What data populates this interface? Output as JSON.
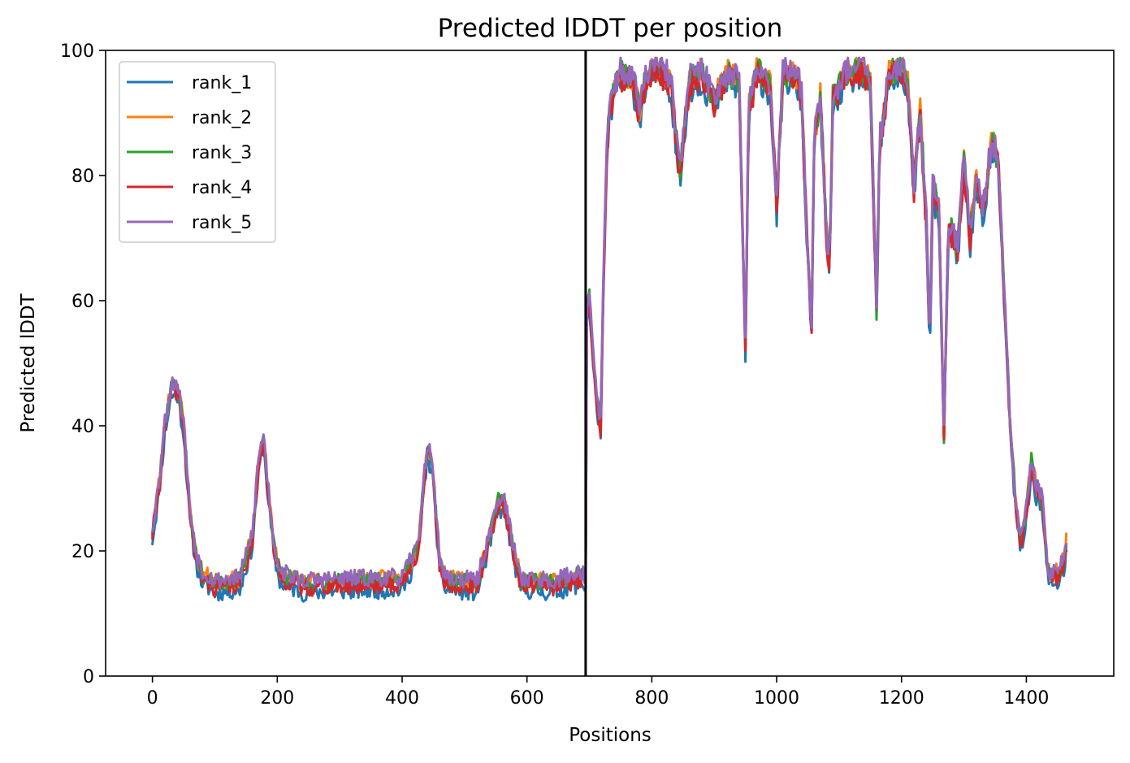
{
  "chart_data": {
    "type": "line",
    "title": "Predicted lDDT per position",
    "xlabel": "Positions",
    "ylabel": "Predicted lDDT",
    "xlim": [
      -75,
      1540
    ],
    "ylim": [
      0,
      100
    ],
    "xticks": [
      0,
      200,
      400,
      600,
      800,
      1000,
      1200,
      1400
    ],
    "yticks": [
      0,
      20,
      40,
      60,
      80,
      100
    ],
    "grid": false,
    "legend_position": "top-left",
    "divider_x": 694,
    "series": [
      {
        "name": "rank_1",
        "color": "#1f77b4",
        "offset": -1.2,
        "seed": 11
      },
      {
        "name": "rank_2",
        "color": "#ff7f0e",
        "offset": 0.6,
        "seed": 23
      },
      {
        "name": "rank_3",
        "color": "#2ca02c",
        "offset": 0.3,
        "seed": 37
      },
      {
        "name": "rank_4",
        "color": "#d62728",
        "offset": -0.4,
        "seed": 41
      },
      {
        "name": "rank_5",
        "color": "#9467bd",
        "offset": 0.8,
        "seed": 53
      }
    ],
    "profile": [
      [
        0,
        23
      ],
      [
        10,
        30
      ],
      [
        20,
        40
      ],
      [
        30,
        46
      ],
      [
        40,
        46
      ],
      [
        50,
        40
      ],
      [
        60,
        26
      ],
      [
        70,
        19
      ],
      [
        80,
        16
      ],
      [
        100,
        14.5
      ],
      [
        140,
        15
      ],
      [
        160,
        22
      ],
      [
        170,
        34
      ],
      [
        178,
        38
      ],
      [
        185,
        30
      ],
      [
        195,
        20
      ],
      [
        205,
        16
      ],
      [
        240,
        14.5
      ],
      [
        300,
        14.8
      ],
      [
        400,
        15
      ],
      [
        425,
        20
      ],
      [
        440,
        36
      ],
      [
        448,
        34
      ],
      [
        460,
        18
      ],
      [
        470,
        15
      ],
      [
        520,
        14.5
      ],
      [
        540,
        22
      ],
      [
        555,
        28
      ],
      [
        565,
        27
      ],
      [
        578,
        20
      ],
      [
        590,
        15
      ],
      [
        640,
        14.5
      ],
      [
        690,
        16
      ],
      [
        694,
        15
      ],
      [
        695,
        58
      ],
      [
        700,
        60
      ],
      [
        705,
        52
      ],
      [
        712,
        44
      ],
      [
        718,
        40
      ],
      [
        722,
        60
      ],
      [
        728,
        84
      ],
      [
        733,
        91
      ],
      [
        740,
        94
      ],
      [
        750,
        96
      ],
      [
        770,
        95
      ],
      [
        780,
        90
      ],
      [
        790,
        95
      ],
      [
        800,
        97
      ],
      [
        820,
        96
      ],
      [
        830,
        95
      ],
      [
        845,
        80
      ],
      [
        860,
        95
      ],
      [
        880,
        96
      ],
      [
        900,
        92
      ],
      [
        920,
        96
      ],
      [
        940,
        95
      ],
      [
        950,
        52
      ],
      [
        955,
        90
      ],
      [
        970,
        97
      ],
      [
        990,
        94
      ],
      [
        1000,
        75
      ],
      [
        1010,
        96
      ],
      [
        1030,
        96
      ],
      [
        1040,
        93
      ],
      [
        1050,
        66
      ],
      [
        1056,
        56
      ],
      [
        1060,
        85
      ],
      [
        1070,
        93
      ],
      [
        1080,
        70
      ],
      [
        1085,
        66
      ],
      [
        1090,
        92
      ],
      [
        1110,
        96
      ],
      [
        1130,
        97
      ],
      [
        1150,
        95
      ],
      [
        1160,
        58
      ],
      [
        1165,
        85
      ],
      [
        1180,
        96
      ],
      [
        1200,
        97
      ],
      [
        1210,
        94
      ],
      [
        1220,
        78
      ],
      [
        1230,
        90
      ],
      [
        1240,
        72
      ],
      [
        1245,
        52
      ],
      [
        1250,
        78
      ],
      [
        1260,
        74
      ],
      [
        1268,
        38
      ],
      [
        1275,
        72
      ],
      [
        1290,
        68
      ],
      [
        1300,
        82
      ],
      [
        1310,
        70
      ],
      [
        1320,
        80
      ],
      [
        1330,
        74
      ],
      [
        1345,
        85
      ],
      [
        1355,
        82
      ],
      [
        1365,
        60
      ],
      [
        1375,
        38
      ],
      [
        1385,
        25
      ],
      [
        1392,
        21
      ],
      [
        1400,
        26
      ],
      [
        1408,
        34
      ],
      [
        1415,
        30
      ],
      [
        1425,
        28
      ],
      [
        1435,
        16
      ],
      [
        1450,
        16
      ],
      [
        1460,
        18
      ],
      [
        1465,
        22
      ]
    ]
  }
}
